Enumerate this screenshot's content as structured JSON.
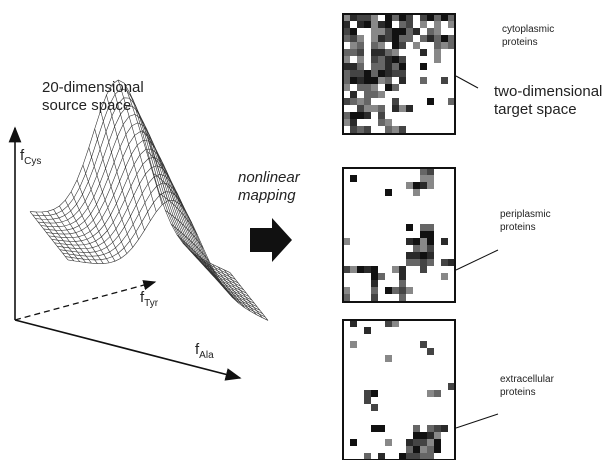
{
  "source": {
    "title_lines": [
      "20-dimensional",
      "source space"
    ],
    "axes": [
      {
        "base": "f",
        "sub": "Cys"
      },
      {
        "base": "f",
        "sub": "Tyr"
      },
      {
        "base": "f",
        "sub": "Ala"
      }
    ]
  },
  "mapping": {
    "lines": [
      "nonlinear",
      "mapping"
    ]
  },
  "target": {
    "title_lines": [
      "two-dimensional",
      "target space"
    ],
    "maps": [
      {
        "label_lines": [
          "cytoplasmic",
          "proteins"
        ]
      },
      {
        "label_lines": [
          "periplasmic",
          "proteins"
        ]
      },
      {
        "label_lines": [
          "extracellular",
          "proteins"
        ]
      }
    ]
  }
}
